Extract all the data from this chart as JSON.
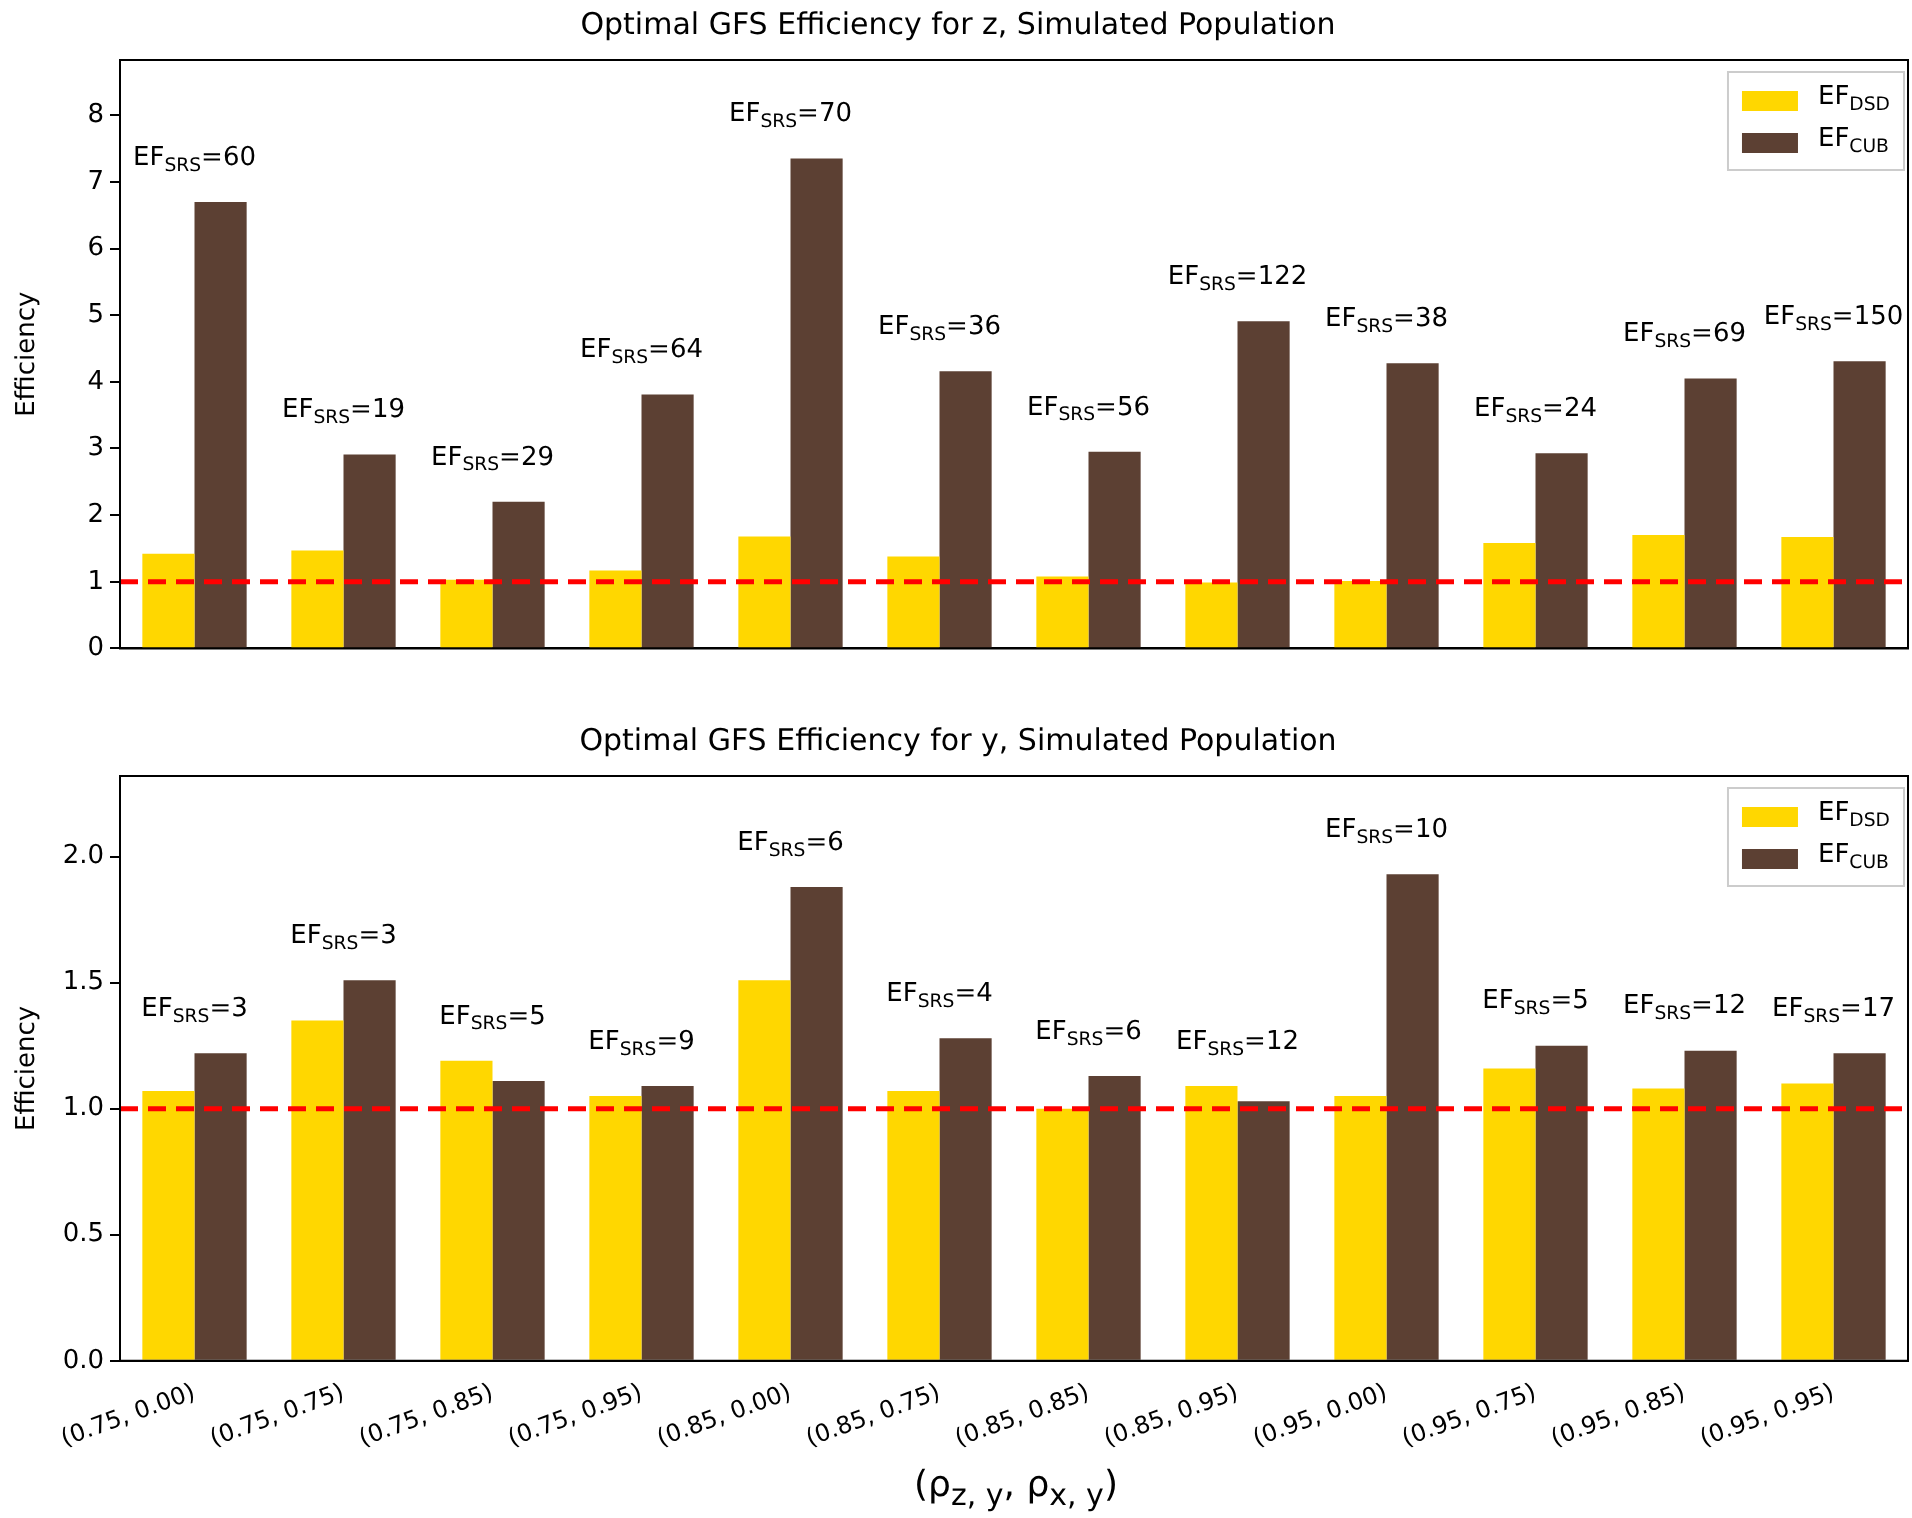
{
  "chart_data": [
    {
      "type": "bar",
      "title": "Optimal GFS Efficiency for z, Simulated Population",
      "ylabel": "Efficiency",
      "categories": [
        "(0.75, 0.00)",
        "(0.75, 0.75)",
        "(0.75, 0.85)",
        "(0.75, 0.95)",
        "(0.85, 0.00)",
        "(0.85, 0.75)",
        "(0.85, 0.85)",
        "(0.85, 0.95)",
        "(0.95, 0.00)",
        "(0.95, 0.75)",
        "(0.95, 0.85)",
        "(0.95, 0.95)"
      ],
      "series": [
        {
          "name": "EF$_{DSD}$",
          "color": "#ffd700",
          "values": [
            1.42,
            1.47,
            1.03,
            1.17,
            1.68,
            1.38,
            1.08,
            0.99,
            1.01,
            1.58,
            1.7,
            1.67
          ]
        },
        {
          "name": "EF$_{CUB}$",
          "color": "#5c4033",
          "values": [
            6.7,
            2.91,
            2.2,
            3.81,
            7.35,
            4.16,
            2.95,
            4.91,
            4.28,
            2.93,
            4.05,
            4.31
          ]
        }
      ],
      "ylim": [
        0,
        8.83
      ],
      "yticks": [
        0,
        1,
        2,
        3,
        4,
        5,
        6,
        7,
        8
      ],
      "tick_labels": "y",
      "legend": "top right",
      "ref_lines": [
        {
          "axis": "y",
          "value": 1,
          "color": "#ff0000",
          "line_style": "dashed"
        }
      ],
      "annotations": [
        {
          "text": "EF$_{SRS}$=60",
          "x": "(0.75, 0.00)",
          "y": 6.7
        },
        {
          "text": "EF$_{SRS}$=19",
          "x": "(0.75, 0.75)",
          "y": 2.91
        },
        {
          "text": "EF$_{SRS}$=29",
          "x": "(0.75, 0.85)",
          "y": 2.2
        },
        {
          "text": "EF$_{SRS}$=64",
          "x": "(0.75, 0.95)",
          "y": 3.81
        },
        {
          "text": "EF$_{SRS}$=70",
          "x": "(0.85, 0.00)",
          "y": 7.35
        },
        {
          "text": "EF$_{SRS}$=36",
          "x": "(0.85, 0.75)",
          "y": 4.16
        },
        {
          "text": "EF$_{SRS}$=56",
          "x": "(0.85, 0.85)",
          "y": 2.95
        },
        {
          "text": "EF$_{SRS}$=122",
          "x": "(0.85, 0.95)",
          "y": 4.91
        },
        {
          "text": "EF$_{SRS}$=38",
          "x": "(0.95, 0.00)",
          "y": 4.28
        },
        {
          "text": "EF$_{SRS}$=24",
          "x": "(0.95, 0.75)",
          "y": 2.93
        },
        {
          "text": "EF$_{SRS}$=69",
          "x": "(0.95, 0.85)",
          "y": 4.05
        },
        {
          "text": "EF$_{SRS}$=150",
          "x": "(0.95, 0.95)",
          "y": 4.31
        }
      ]
    },
    {
      "type": "bar",
      "title": "Optimal GFS Efficiency for y, Simulated Population",
      "ylabel": "Efficiency",
      "xlabel": "(ρ$_{z, y}$,  ρ$_{x, y}$)",
      "categories": [
        "(0.75, 0.00)",
        "(0.75, 0.75)",
        "(0.75, 0.85)",
        "(0.75, 0.95)",
        "(0.85, 0.00)",
        "(0.85, 0.75)",
        "(0.85, 0.85)",
        "(0.85, 0.95)",
        "(0.95, 0.00)",
        "(0.95, 0.75)",
        "(0.95, 0.85)",
        "(0.95, 0.95)"
      ],
      "series": [
        {
          "name": "EF$_{DSD}$",
          "color": "#ffd700",
          "values": [
            1.07,
            1.35,
            1.19,
            1.05,
            1.51,
            1.07,
            1.0,
            1.09,
            1.05,
            1.16,
            1.08,
            1.1
          ]
        },
        {
          "name": "EF$_{CUB}$",
          "color": "#5c4033",
          "values": [
            1.22,
            1.51,
            1.11,
            1.09,
            1.88,
            1.28,
            1.13,
            1.03,
            1.93,
            1.25,
            1.23,
            1.22
          ]
        }
      ],
      "ylim": [
        0,
        2.32
      ],
      "yticks": [
        {
          "value": 0,
          "label": "0.0"
        },
        {
          "value": 0.5,
          "label": "0.5"
        },
        {
          "value": 1,
          "label": "1.0"
        },
        {
          "value": 1.5,
          "label": "1.5"
        },
        {
          "value": 2,
          "label": "2.0"
        }
      ],
      "legend": "top right",
      "ref_lines": [
        {
          "axis": "y",
          "value": 1,
          "color": "#ff0000",
          "line_style": "dashed"
        }
      ],
      "annotations": [
        {
          "text": "EF$_{SRS}$=3",
          "x": "(0.75, 0.00)",
          "y": 1.22
        },
        {
          "text": "EF$_{SRS}$=3",
          "x": "(0.75, 0.75)",
          "y": 1.51
        },
        {
          "text": "EF$_{SRS}$=5",
          "x": "(0.75, 0.85)",
          "y": 1.19
        },
        {
          "text": "EF$_{SRS}$=9",
          "x": "(0.75, 0.95)",
          "y": 1.09
        },
        {
          "text": "EF$_{SRS}$=6",
          "x": "(0.85, 0.00)",
          "y": 1.88
        },
        {
          "text": "EF$_{SRS}$=4",
          "x": "(0.85, 0.75)",
          "y": 1.28
        },
        {
          "text": "EF$_{SRS}$=6",
          "x": "(0.85, 0.85)",
          "y": 1.13
        },
        {
          "text": "EF$_{SRS}$=12",
          "x": "(0.85, 0.95)",
          "y": 1.09
        },
        {
          "text": "EF$_{SRS}$=10",
          "x": "(0.95, 0.00)",
          "y": 1.93
        },
        {
          "text": "EF$_{SRS}$=5",
          "x": "(0.95, 0.75)",
          "y": 1.25
        },
        {
          "text": "EF$_{SRS}$=12",
          "x": "(0.95, 0.85)",
          "y": 1.23
        },
        {
          "text": "EF$_{SRS}$=17",
          "x": "(0.95, 0.95)",
          "y": 1.22
        }
      ]
    }
  ]
}
